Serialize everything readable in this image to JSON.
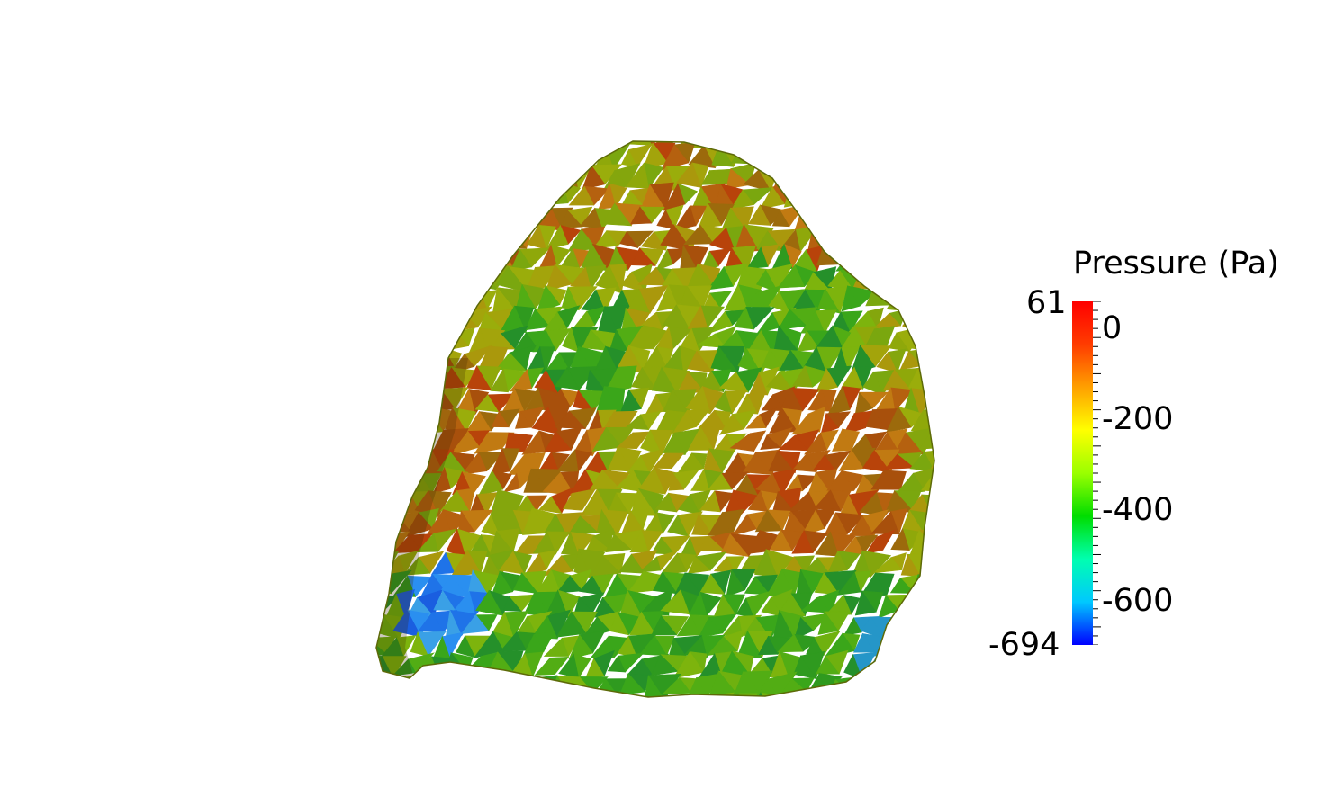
{
  "legend": {
    "title": "Pressure (Pa)",
    "range_max_label": "61",
    "range_min_label": "-694",
    "range": [
      -694,
      61
    ],
    "tick_labels": [
      {
        "value": 0,
        "text": "0"
      },
      {
        "value": -200,
        "text": "-200"
      },
      {
        "value": -400,
        "text": "-400"
      },
      {
        "value": -600,
        "text": "-600"
      }
    ],
    "colormap": [
      "#0000ff",
      "#00c8ff",
      "#00ffb0",
      "#00dd00",
      "#9aff00",
      "#ffff00",
      "#ffa000",
      "#ff3c00",
      "#ff0000"
    ]
  },
  "scene": {
    "background": "#ffffff",
    "object": "triangulated-surface-mesh",
    "dominant_colors": [
      "#8fa80a",
      "#6fb10f",
      "#b5610f",
      "#3aa61a",
      "#1f73e8"
    ]
  }
}
